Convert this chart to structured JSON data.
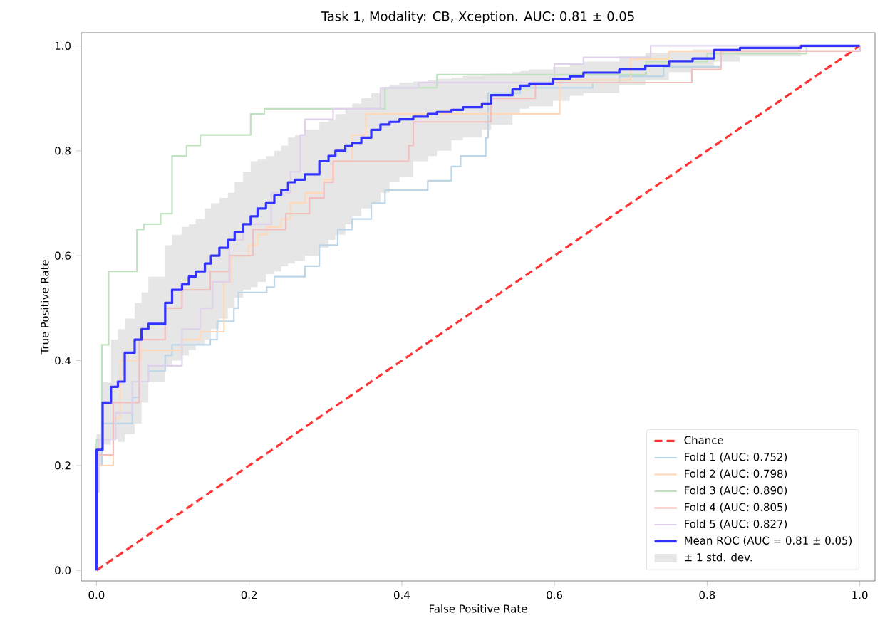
{
  "chart_data": {
    "type": "step",
    "title": "Task 1, Modality: CB, Xception. AUC: 0.81 ± 0.05",
    "xlabel": "False Positive Rate",
    "ylabel": "True Positive Rate",
    "xlim": [
      -0.02,
      1.02
    ],
    "ylim": [
      -0.02,
      1.025
    ],
    "xticks": [
      {
        "value": 0,
        "label": "0.0"
      },
      {
        "value": 0.2,
        "label": "0.2"
      },
      {
        "value": 0.4,
        "label": "0.4"
      },
      {
        "value": 0.6,
        "label": "0.6"
      },
      {
        "value": 0.8,
        "label": "0.8"
      },
      {
        "value": 1,
        "label": "1.0"
      }
    ],
    "yticks": [
      {
        "value": 0,
        "label": "0.0"
      },
      {
        "value": 0.2,
        "label": "0.2"
      },
      {
        "value": 0.4,
        "label": "0.4"
      },
      {
        "value": 0.6,
        "label": "0.6"
      },
      {
        "value": 0.8,
        "label": "0.8"
      },
      {
        "value": 1,
        "label": "1.0"
      }
    ],
    "legend": "bottom right",
    "annotations": [
      "± 1 std. dev."
    ],
    "series": [
      {
        "name": "Chance",
        "type": "line",
        "line_style": "dashed",
        "color": "#ff3333",
        "x": [
          0,
          1
        ],
        "values": [
          0,
          1
        ]
      },
      {
        "name": "Fold 1 (AUC: 0.752)",
        "color": "#bcd6e8",
        "x": [
          0,
          0,
          0.007,
          0.047,
          0.056,
          0.068,
          0.09,
          0.099,
          0.149,
          0.158,
          0.18,
          0.186,
          0.223,
          0.233,
          0.273,
          0.292,
          0.316,
          0.335,
          0.36,
          0.378,
          0.434,
          0.465,
          0.477,
          0.51,
          0.513,
          0.555,
          0.65,
          0.685,
          0.743,
          0.818,
          1.0
        ],
        "values": [
          0,
          0.2,
          0.28,
          0.33,
          0.36,
          0.38,
          0.41,
          0.43,
          0.44,
          0.475,
          0.5,
          0.53,
          0.54,
          0.56,
          0.58,
          0.62,
          0.65,
          0.67,
          0.7,
          0.725,
          0.743,
          0.77,
          0.79,
          0.825,
          0.91,
          0.92,
          0.93,
          0.942,
          0.96,
          0.99,
          1.0
        ]
      },
      {
        "name": "Fold 2 (AUC: 0.798)",
        "color": "#ffd8b7",
        "x": [
          0,
          0,
          0.022,
          0.031,
          0.058,
          0.112,
          0.136,
          0.167,
          0.176,
          0.199,
          0.211,
          0.223,
          0.242,
          0.254,
          0.273,
          0.298,
          0.31,
          0.335,
          0.353,
          0.607,
          0.7,
          0.75,
          0.92,
          1.0
        ],
        "values": [
          0,
          0.2,
          0.29,
          0.4,
          0.42,
          0.44,
          0.455,
          0.55,
          0.6,
          0.62,
          0.64,
          0.655,
          0.67,
          0.7,
          0.72,
          0.745,
          0.78,
          0.83,
          0.87,
          0.935,
          0.975,
          0.99,
          1.0,
          1.0
        ]
      },
      {
        "name": "Fold 3 (AUC: 0.890)",
        "color": "#c0e2c0",
        "x": [
          0,
          0,
          0.007,
          0.016,
          0.053,
          0.062,
          0.084,
          0.099,
          0.118,
          0.136,
          0.202,
          0.22,
          0.378,
          0.446,
          0.72,
          0.8,
          0.93,
          1.0
        ],
        "values": [
          0,
          0.25,
          0.43,
          0.57,
          0.65,
          0.66,
          0.68,
          0.79,
          0.81,
          0.83,
          0.87,
          0.88,
          0.92,
          0.945,
          0.97,
          0.985,
          1.0,
          1.0
        ]
      },
      {
        "name": "Fold 4 (AUC: 0.805)",
        "color": "#f3bebe",
        "x": [
          0,
          0,
          0.022,
          0.056,
          0.09,
          0.112,
          0.149,
          0.174,
          0.205,
          0.248,
          0.279,
          0.298,
          0.31,
          0.409,
          0.415,
          0.517,
          0.575,
          0.78,
          0.818,
          1.0
        ],
        "values": [
          0,
          0.22,
          0.32,
          0.44,
          0.5,
          0.535,
          0.57,
          0.6,
          0.65,
          0.68,
          0.71,
          0.74,
          0.78,
          0.81,
          0.855,
          0.9,
          0.93,
          0.955,
          0.99,
          1.0
        ]
      },
      {
        "name": "Fold 5 (AUC: 0.827)",
        "color": "#dfd1eb",
        "x": [
          0,
          0,
          0.003,
          0.025,
          0.047,
          0.068,
          0.112,
          0.136,
          0.152,
          0.174,
          0.192,
          0.229,
          0.254,
          0.267,
          0.273,
          0.31,
          0.372,
          0.422,
          0.6,
          0.638,
          0.726,
          1.0
        ],
        "values": [
          0,
          0.15,
          0.25,
          0.3,
          0.36,
          0.39,
          0.46,
          0.5,
          0.55,
          0.63,
          0.66,
          0.72,
          0.76,
          0.83,
          0.86,
          0.88,
          0.92,
          0.93,
          0.965,
          0.978,
          1.0,
          1.0
        ]
      },
      {
        "name": "Mean ROC (AUC = 0.81 ± 0.05)",
        "color": "#3333ff",
        "x": [
          0,
          0,
          0.008,
          0.019,
          0.028,
          0.037,
          0.05,
          0.059,
          0.068,
          0.09,
          0.099,
          0.112,
          0.121,
          0.13,
          0.142,
          0.15,
          0.161,
          0.172,
          0.181,
          0.192,
          0.202,
          0.211,
          0.222,
          0.233,
          0.242,
          0.251,
          0.26,
          0.273,
          0.292,
          0.304,
          0.313,
          0.326,
          0.335,
          0.347,
          0.36,
          0.372,
          0.384,
          0.397,
          0.415,
          0.434,
          0.446,
          0.465,
          0.48,
          0.505,
          0.517,
          0.545,
          0.555,
          0.567,
          0.598,
          0.62,
          0.638,
          0.685,
          0.719,
          0.75,
          0.781,
          0.809,
          0.843,
          0.923,
          1.0
        ],
        "values": [
          0,
          0.23,
          0.32,
          0.35,
          0.36,
          0.415,
          0.44,
          0.46,
          0.47,
          0.51,
          0.535,
          0.545,
          0.56,
          0.57,
          0.585,
          0.6,
          0.615,
          0.63,
          0.645,
          0.66,
          0.675,
          0.69,
          0.7,
          0.715,
          0.725,
          0.74,
          0.745,
          0.755,
          0.78,
          0.79,
          0.8,
          0.81,
          0.815,
          0.825,
          0.84,
          0.85,
          0.855,
          0.86,
          0.865,
          0.87,
          0.874,
          0.878,
          0.883,
          0.89,
          0.906,
          0.917,
          0.924,
          0.928,
          0.937,
          0.942,
          0.949,
          0.955,
          0.962,
          0.971,
          0.976,
          0.992,
          0.996,
          1.0,
          1.0
        ],
        "upper": [
          0,
          0.26,
          0.36,
          0.44,
          0.46,
          0.48,
          0.51,
          0.53,
          0.56,
          0.62,
          0.64,
          0.655,
          0.66,
          0.67,
          0.69,
          0.7,
          0.71,
          0.72,
          0.74,
          0.76,
          0.78,
          0.783,
          0.79,
          0.8,
          0.81,
          0.825,
          0.83,
          0.84,
          0.855,
          0.86,
          0.87,
          0.88,
          0.89,
          0.9,
          0.91,
          0.92,
          0.926,
          0.93,
          0.932,
          0.935,
          0.937,
          0.94,
          0.943,
          0.945,
          0.947,
          0.95,
          0.952,
          0.955,
          0.96,
          0.965,
          0.97,
          0.98,
          0.987,
          0.99,
          0.993,
          0.995,
          0.997,
          1.0,
          1.0
        ],
        "lower": [
          0,
          0.2,
          0.24,
          0.25,
          0.245,
          0.26,
          0.28,
          0.32,
          0.36,
          0.39,
          0.4,
          0.41,
          0.42,
          0.43,
          0.44,
          0.46,
          0.48,
          0.5,
          0.52,
          0.535,
          0.54,
          0.55,
          0.565,
          0.57,
          0.58,
          0.585,
          0.59,
          0.6,
          0.615,
          0.63,
          0.64,
          0.66,
          0.675,
          0.69,
          0.7,
          0.72,
          0.74,
          0.75,
          0.78,
          0.79,
          0.8,
          0.82,
          0.825,
          0.84,
          0.85,
          0.87,
          0.88,
          0.885,
          0.895,
          0.905,
          0.91,
          0.925,
          0.935,
          0.95,
          0.96,
          0.97,
          0.98,
          0.995,
          1.0
        ]
      }
    ]
  }
}
